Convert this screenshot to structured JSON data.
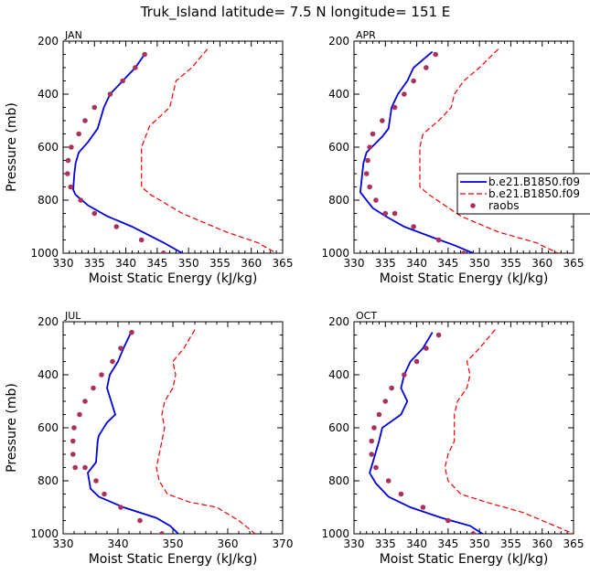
{
  "title": "Truk_Island  latitude= 7.5 N longitude= 151 E",
  "colors": {
    "model1": "#0000dd",
    "model2": "#ee0000",
    "raobs": "#a8325f"
  },
  "legend": [
    {
      "label": "b.e21.B1850.f09",
      "style": "solid"
    },
    {
      "label": "b.e21.B1850.f09",
      "style": "dashed"
    },
    {
      "label": "raobs",
      "style": "dots"
    }
  ],
  "chart_data": [
    {
      "type": "line",
      "panel": "JAN",
      "xlabel": "Moist Static Energy (kJ/kg)",
      "ylabel": "Pressure (mb)",
      "xlim": [
        330,
        365
      ],
      "ylim": [
        200,
        1000
      ],
      "xticks": [
        330,
        335,
        340,
        345,
        350,
        355,
        360,
        365
      ],
      "yticks": [
        200,
        400,
        600,
        800,
        1000
      ],
      "series": [
        {
          "name": "b.e21.B1850.f09",
          "style": "solid",
          "x": [
            343.0,
            341.5,
            339.5,
            337.5,
            336.5,
            335.5,
            334.0,
            332.5,
            332.0,
            331.8,
            331.6,
            332.0,
            334.0,
            337.0,
            341.0,
            346.0,
            349.0
          ],
          "y": [
            250,
            300,
            350,
            400,
            450,
            530,
            580,
            620,
            660,
            700,
            760,
            780,
            820,
            860,
            900,
            960,
            1000
          ]
        },
        {
          "name": "b.e21.B1850.f09",
          "style": "dashed",
          "x": [
            353.0,
            350.5,
            348.0,
            347.5,
            347.0,
            343.8,
            342.5,
            342.5,
            342.5,
            344.0,
            349.0,
            356.0,
            361.0,
            364.0
          ],
          "y": [
            230,
            300,
            350,
            400,
            450,
            520,
            600,
            650,
            750,
            780,
            850,
            920,
            960,
            1000
          ]
        },
        {
          "name": "raobs",
          "style": "dots",
          "x": [
            343.0,
            341.5,
            339.5,
            337.5,
            335.0,
            333.5,
            332.5,
            331.3,
            330.8,
            330.7,
            331.2,
            332.8,
            335.0,
            338.5,
            342.5,
            346.0
          ],
          "y": [
            250,
            300,
            350,
            400,
            450,
            500,
            550,
            600,
            650,
            700,
            750,
            800,
            850,
            900,
            950,
            1000
          ]
        }
      ]
    },
    {
      "type": "line",
      "panel": "APR",
      "xlabel": "Moist Static Energy (kJ/kg)",
      "ylabel": "",
      "xlim": [
        330,
        365
      ],
      "ylim": [
        200,
        1000
      ],
      "xticks": [
        330,
        335,
        340,
        345,
        350,
        355,
        360,
        365
      ],
      "yticks": [
        200,
        400,
        600,
        800,
        1000
      ],
      "series": [
        {
          "name": "b.e21.B1850.f09",
          "style": "solid",
          "x": [
            342.5,
            339.5,
            338.5,
            337.0,
            336.0,
            335.5,
            334.5,
            332.0,
            331.5,
            331.0,
            333.0,
            335.0,
            338.0,
            342.5,
            346.0,
            349.0
          ],
          "y": [
            240,
            300,
            350,
            400,
            450,
            530,
            560,
            620,
            660,
            770,
            830,
            860,
            900,
            940,
            970,
            1000
          ]
        },
        {
          "name": "b.e21.B1850.f09",
          "style": "dashed",
          "x": [
            353.0,
            350.0,
            347.5,
            346.0,
            345.5,
            343.5,
            341.0,
            340.5,
            340.5,
            342.0,
            347.0,
            353.0,
            359.0,
            362.5
          ],
          "y": [
            230,
            300,
            350,
            400,
            450,
            500,
            550,
            600,
            750,
            780,
            860,
            920,
            960,
            1000
          ]
        },
        {
          "name": "raobs",
          "style": "dots",
          "x": [
            343.0,
            341.5,
            339.5,
            338.0,
            336.5,
            334.5,
            333.0,
            332.5,
            332.2,
            332.0,
            332.5,
            333.5,
            335.0,
            336.5,
            339.5,
            343.5,
            347.5
          ],
          "y": [
            250,
            300,
            350,
            400,
            450,
            500,
            550,
            600,
            650,
            700,
            750,
            800,
            850,
            850,
            900,
            950,
            1000
          ]
        }
      ]
    },
    {
      "type": "line",
      "panel": "JUL",
      "xlabel": "Moist Static Energy (kJ/kg)",
      "ylabel": "Pressure (mb)",
      "xlim": [
        330,
        370
      ],
      "ylim": [
        200,
        1000
      ],
      "xticks": [
        330,
        340,
        350,
        360,
        370
      ],
      "yticks": [
        200,
        400,
        600,
        800,
        1000
      ],
      "series": [
        {
          "name": "b.e21.B1850.f09",
          "style": "solid",
          "x": [
            342.5,
            341.0,
            340.0,
            338.5,
            338.0,
            339.5,
            338.0,
            336.5,
            336.3,
            336.0,
            334.5,
            335.0,
            336.5,
            341.0,
            347.0,
            349.5,
            351.0
          ],
          "y": [
            235,
            300,
            350,
            400,
            450,
            550,
            580,
            630,
            650,
            730,
            770,
            830,
            860,
            900,
            940,
            970,
            1000
          ]
        },
        {
          "name": "b.e21.B1850.f09",
          "style": "dashed",
          "x": [
            354.0,
            352.0,
            350.0,
            350.5,
            350.0,
            348.5,
            348.0,
            348.5,
            347.5,
            347.0,
            347.5,
            349.0,
            353.0,
            358.0,
            362.0,
            365.0
          ],
          "y": [
            230,
            300,
            350,
            400,
            450,
            500,
            550,
            600,
            700,
            750,
            800,
            850,
            880,
            900,
            950,
            1000
          ]
        },
        {
          "name": "raobs",
          "style": "dots",
          "x": [
            342.5,
            340.5,
            339.0,
            337.0,
            335.5,
            334.0,
            333.0,
            332.0,
            331.8,
            331.8,
            332.2,
            334.0,
            336.0,
            337.5,
            340.5,
            344.0,
            348.0
          ],
          "y": [
            240,
            300,
            350,
            400,
            450,
            500,
            550,
            600,
            650,
            700,
            750,
            750,
            800,
            850,
            900,
            950,
            1000
          ]
        }
      ]
    },
    {
      "type": "line",
      "panel": "OCT",
      "xlabel": "Moist Static Energy (kJ/kg)",
      "ylabel": "",
      "xlim": [
        330,
        365
      ],
      "ylim": [
        200,
        1000
      ],
      "xticks": [
        330,
        335,
        340,
        345,
        350,
        355,
        360,
        365
      ],
      "yticks": [
        200,
        400,
        600,
        800,
        1000
      ],
      "series": [
        {
          "name": "b.e21.B1850.f09",
          "style": "solid",
          "x": [
            342.5,
            341.0,
            339.0,
            338.0,
            337.5,
            338.5,
            337.5,
            334.5,
            334.0,
            333.0,
            332.5,
            333.5,
            335.5,
            339.0,
            344.0,
            348.5,
            350.5
          ],
          "y": [
            240,
            300,
            350,
            400,
            450,
            500,
            550,
            600,
            650,
            730,
            770,
            810,
            860,
            900,
            940,
            970,
            1000
          ]
        },
        {
          "name": "b.e21.B1850.f09",
          "style": "dashed",
          "x": [
            352.5,
            350.0,
            348.0,
            348.5,
            348.0,
            346.5,
            346.0,
            346.0,
            345.0,
            344.5,
            345.0,
            347.0,
            351.0,
            357.0,
            363.0,
            365.0
          ],
          "y": [
            230,
            300,
            350,
            400,
            450,
            500,
            550,
            650,
            700,
            750,
            800,
            850,
            880,
            920,
            980,
            1000
          ]
        },
        {
          "name": "raobs",
          "style": "dots",
          "x": [
            343.5,
            341.5,
            340.0,
            338.0,
            336.0,
            335.0,
            334.0,
            333.2,
            332.8,
            332.8,
            333.5,
            335.5,
            337.5,
            341.0,
            345.0,
            349.0
          ],
          "y": [
            250,
            300,
            350,
            400,
            450,
            500,
            550,
            600,
            650,
            700,
            750,
            800,
            850,
            900,
            950,
            1000
          ]
        }
      ]
    }
  ]
}
